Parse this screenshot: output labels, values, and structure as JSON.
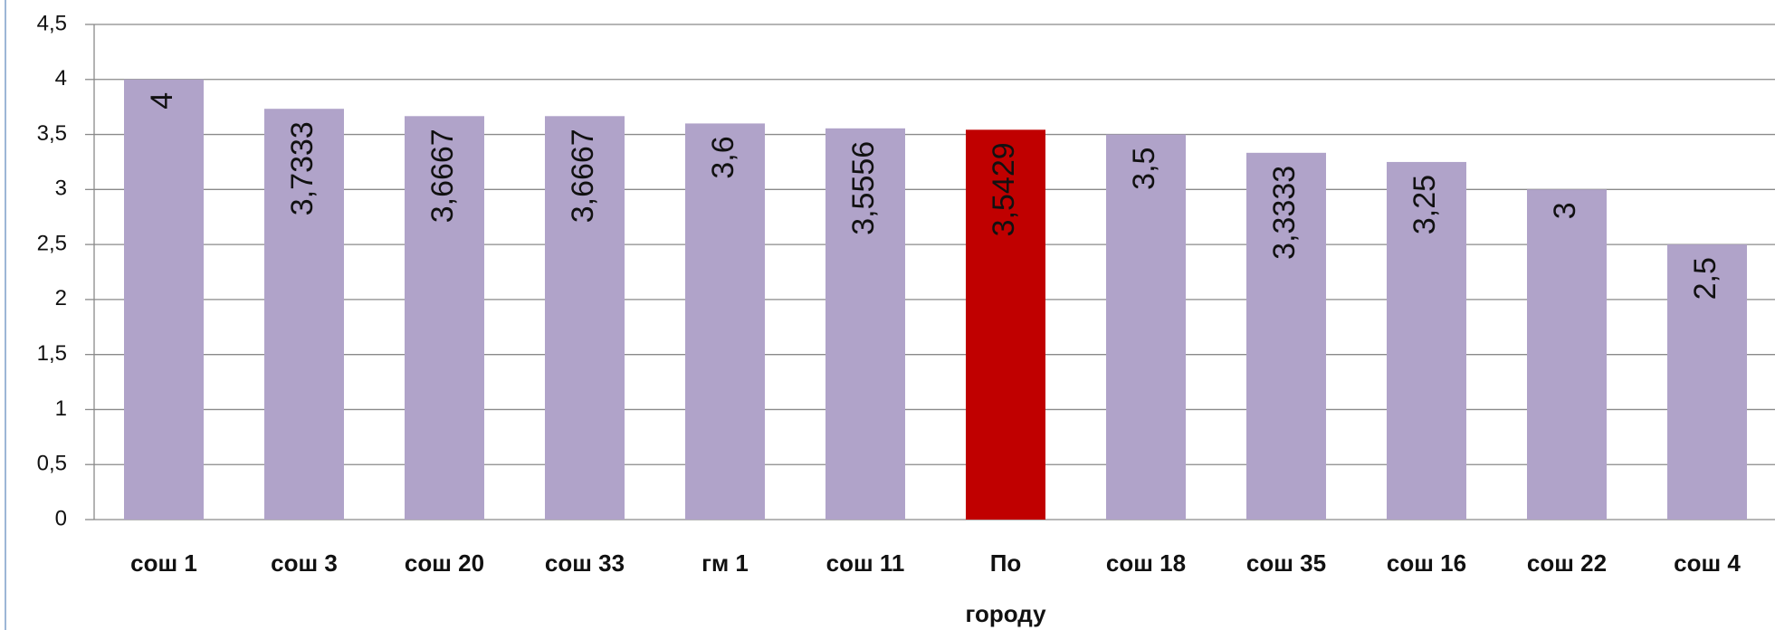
{
  "chart_data": {
    "type": "bar",
    "categories": [
      "сош 1",
      "сош 3",
      "сош 20",
      "сош 33",
      "гм 1",
      "сош 11",
      "По городу",
      "сош 18",
      "сош 35",
      "сош 16",
      "сош 22",
      "сош 4"
    ],
    "values": [
      4,
      3.7333,
      3.6667,
      3.6667,
      3.6,
      3.5556,
      3.5429,
      3.5,
      3.3333,
      3.25,
      3,
      2.5
    ],
    "value_labels": [
      "4",
      "3,7333",
      "3,6667",
      "3,6667",
      "3,6",
      "3,5556",
      "3,5429",
      "3,5",
      "3,3333",
      "3,25",
      "3",
      "2,5"
    ],
    "colors": [
      "#b0a3c9",
      "#b0a3c9",
      "#b0a3c9",
      "#b0a3c9",
      "#b0a3c9",
      "#b0a3c9",
      "#c00000",
      "#b0a3c9",
      "#b0a3c9",
      "#b0a3c9",
      "#b0a3c9",
      "#b0a3c9"
    ],
    "ylim": [
      0,
      4.5
    ],
    "yticks": [
      0,
      {
        "value": 0.5,
        "label": "0,5"
      },
      1,
      {
        "value": 1.5,
        "label": "1,5"
      },
      2,
      {
        "value": 2.5,
        "label": "2,5"
      },
      3,
      {
        "value": 3.5,
        "label": "3,5"
      },
      4,
      {
        "value": 4.5,
        "label": "4,5"
      }
    ],
    "grid": true
  }
}
